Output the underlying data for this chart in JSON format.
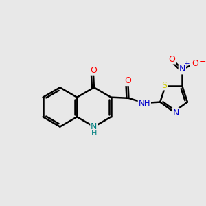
{
  "background_color": "#e8e8e8",
  "bond_color": "#000000",
  "bond_width": 1.8,
  "atoms": {
    "N_blue": "#0000cc",
    "N_teal": "#008080",
    "O_red": "#ff0000",
    "S_yellow": "#cccc00",
    "C_black": "#000000"
  },
  "scale": 0.48,
  "figsize": [
    3.0,
    3.0
  ],
  "dpi": 100,
  "xlim": [
    -2.4,
    2.2
  ],
  "ylim": [
    -1.3,
    1.6
  ]
}
